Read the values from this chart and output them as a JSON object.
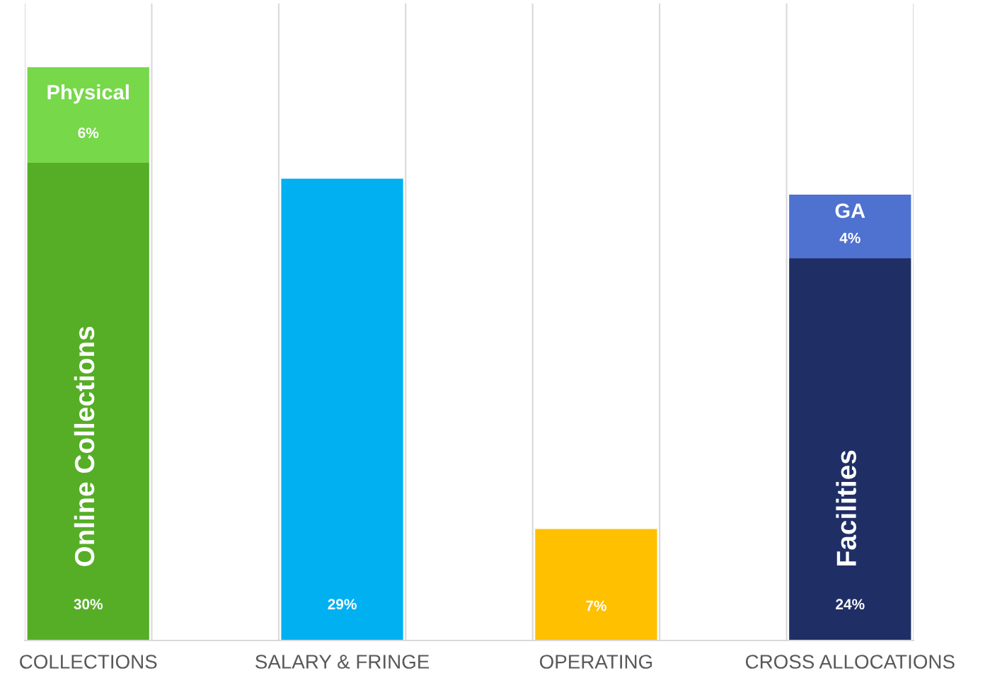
{
  "chart_data": {
    "type": "bar",
    "stacked": true,
    "categories": [
      "COLLECTIONS",
      "SALARY & FRINGE",
      "OPERATING",
      "CROSS ALLOCATIONS"
    ],
    "series": [
      {
        "name": "Online Collections",
        "color": "#56ae27",
        "values": [
          30,
          null,
          null,
          null
        ],
        "value_labels": [
          "30%",
          null,
          null,
          null
        ]
      },
      {
        "color": "#00b0f0",
        "values": [
          null,
          29,
          null,
          null
        ],
        "value_labels": [
          null,
          "29%",
          null,
          null
        ]
      },
      {
        "color": "#ffc000",
        "values": [
          null,
          null,
          7,
          null
        ],
        "value_labels": [
          null,
          null,
          "7%",
          null
        ]
      },
      {
        "name": "Facilities",
        "color": "#1f2f66",
        "values": [
          null,
          null,
          null,
          24
        ],
        "value_labels": [
          null,
          null,
          null,
          "24%"
        ]
      },
      {
        "name": "Physical",
        "color": "#77d84a",
        "values": [
          6,
          null,
          null,
          null
        ],
        "value_labels": [
          "6%",
          null,
          null,
          null
        ]
      },
      {
        "name": "GA",
        "color": "#4f71d0",
        "values": [
          null,
          null,
          null,
          4
        ],
        "value_labels": [
          null,
          null,
          null,
          "4%"
        ]
      }
    ],
    "ylim": [
      0,
      40
    ],
    "tick_labels": "x",
    "grid": "x",
    "legend": false
  }
}
